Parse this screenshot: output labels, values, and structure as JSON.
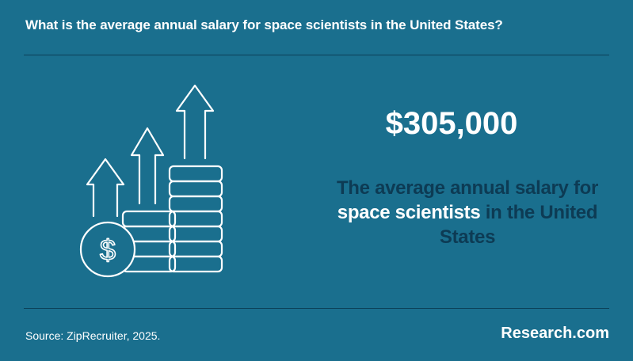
{
  "header": {
    "question": "What is the average annual salary for space scientists in the United States?"
  },
  "stat": {
    "value": "$305,000",
    "caption_part1": "The average annual salary for",
    "caption_highlight": "space scientists",
    "caption_part2": "in the United States"
  },
  "footer": {
    "source": "Source: ZipRecruiter, 2025.",
    "brand": "Research.com"
  },
  "illustration": {
    "icon": "rising-coins-dollar-icon",
    "coin_symbol": "$"
  },
  "colors": {
    "background": "#1a6f8e",
    "rule": "#0b3f57",
    "caption_text": "#0d3b54",
    "highlight": "#ffffff"
  }
}
